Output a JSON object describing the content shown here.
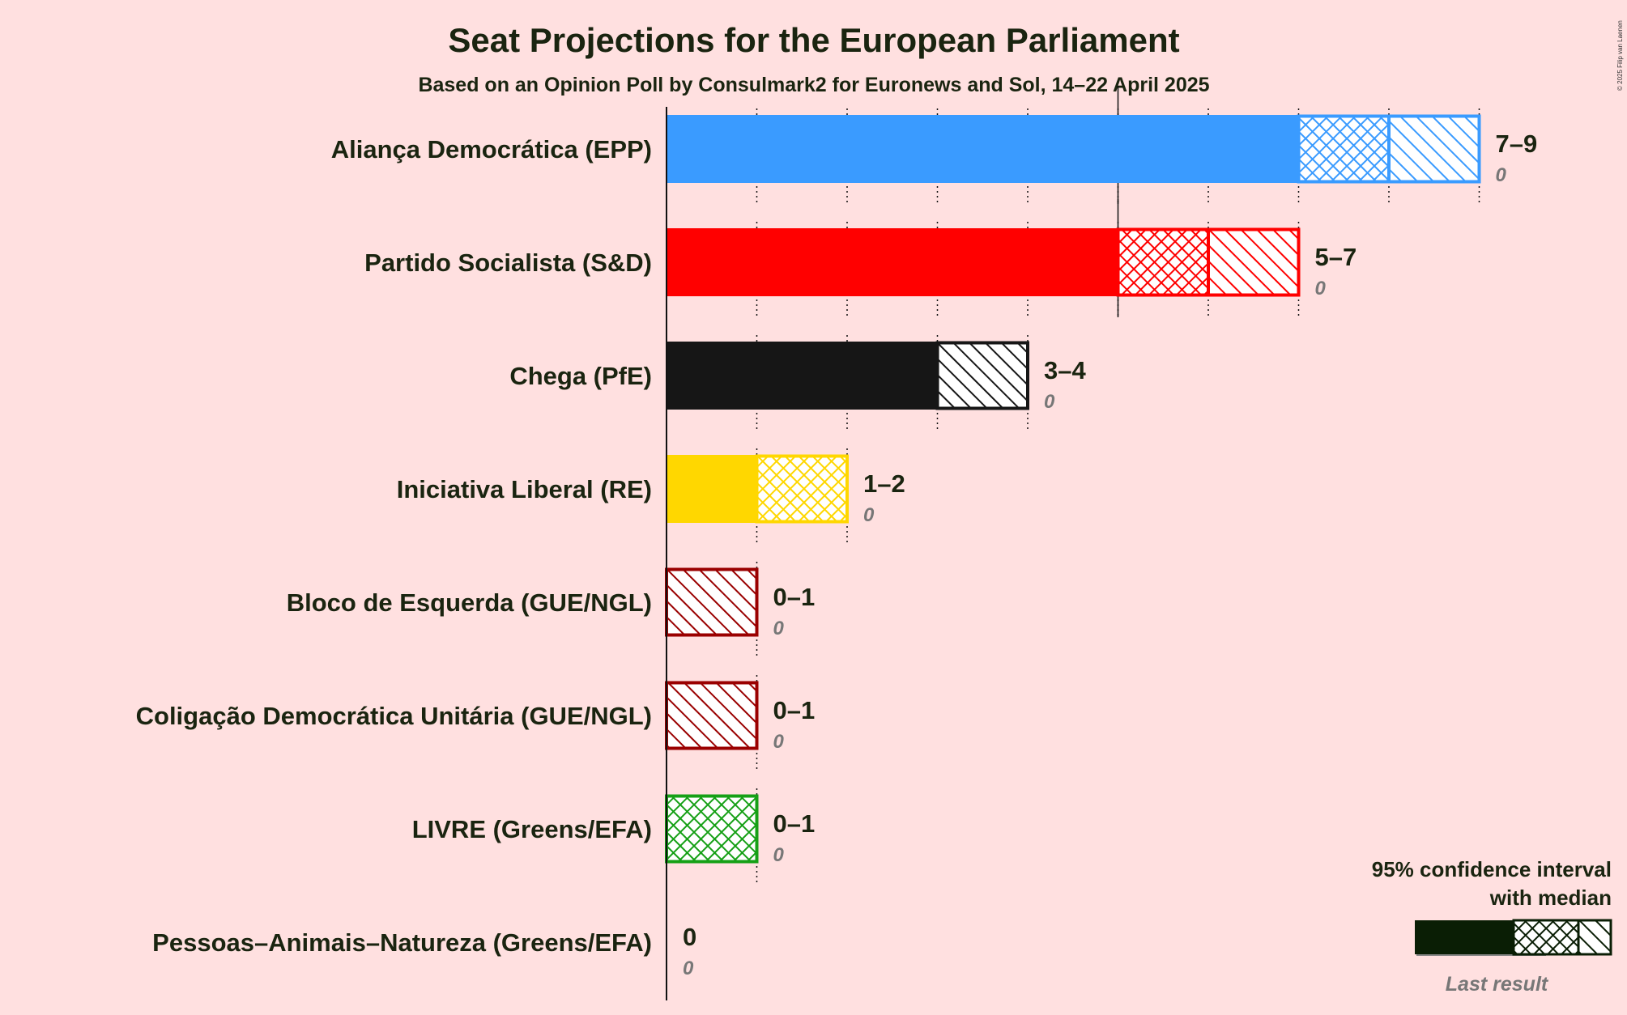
{
  "title": "Seat Projections for the European Parliament",
  "subtitle": "Based on an Opinion Poll by Consulmark2 for Euronews and Sol, 14–22 April 2025",
  "copyright": "© 2025 Filip van Laenen",
  "legend": {
    "ci_label_line1": "95% confidence interval",
    "ci_label_line2": "with median",
    "last_result_label": "Last result"
  },
  "chart_data": {
    "type": "bar",
    "title": "Seat Projections for the European Parliament",
    "xlabel": "",
    "ylabel": "",
    "xlim": [
      0,
      9
    ],
    "grid": "dotted vertical lines at each seat",
    "legend_position": "bottom-right",
    "series": [
      {
        "name": "Aliança Democrática (EPP)",
        "low": 7,
        "median": 8,
        "high": 9,
        "last": 0,
        "range_label": "7–9",
        "last_label": "0",
        "color": "#3a9bff",
        "dark": "#3a9bff"
      },
      {
        "name": "Partido Socialista (S&D)",
        "low": 5,
        "median": 6,
        "high": 7,
        "last": 0,
        "range_label": "5–7",
        "last_label": "0",
        "color": "#ff0000",
        "dark": "#ff0000"
      },
      {
        "name": "Chega (PfE)",
        "low": 3,
        "median": 3,
        "high": 4,
        "last": 0,
        "range_label": "3–4",
        "last_label": "0",
        "color": "#161616",
        "dark": "#161616"
      },
      {
        "name": "Iniciativa Liberal (RE)",
        "low": 1,
        "median": 2,
        "high": 2,
        "last": 0,
        "range_label": "1–2",
        "last_label": "0",
        "color": "#ffd700",
        "dark": "#ffd700"
      },
      {
        "name": "Bloco de Esquerda (GUE/NGL)",
        "low": 0,
        "median": 0,
        "high": 1,
        "last": 0,
        "range_label": "0–1",
        "last_label": "0",
        "color": "#9a0000",
        "dark": "#9a0000"
      },
      {
        "name": "Coligação Democrática Unitária (GUE/NGL)",
        "low": 0,
        "median": 0,
        "high": 1,
        "last": 0,
        "range_label": "0–1",
        "last_label": "0",
        "color": "#9a0000",
        "dark": "#9a0000"
      },
      {
        "name": "LIVRE (Greens/EFA)",
        "low": 0,
        "median": 1,
        "high": 1,
        "last": 0,
        "range_label": "0–1",
        "last_label": "0",
        "color": "#16a016",
        "dark": "#16a016"
      },
      {
        "name": "Pessoas–Animais–Natureza (Greens/EFA)",
        "low": 0,
        "median": 0,
        "high": 0,
        "last": 0,
        "range_label": "0",
        "last_label": "0",
        "color": "#1a2410",
        "dark": "#1a2410"
      }
    ]
  }
}
